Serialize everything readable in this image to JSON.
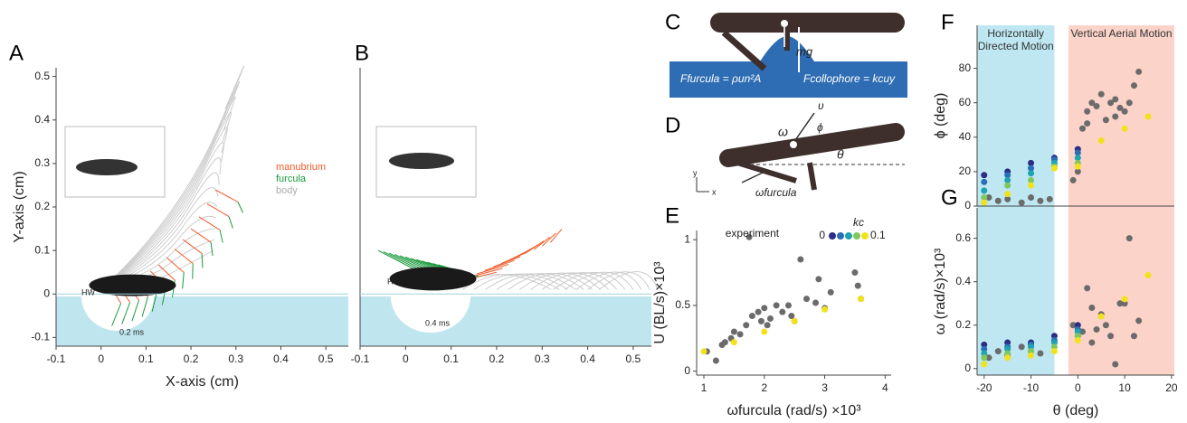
{
  "panel_labels": [
    "A",
    "B",
    "C",
    "D",
    "E",
    "F",
    "G"
  ],
  "diagram_c": {
    "weight": "mg",
    "furcula_force": "Ffurcula = ρun²A",
    "collophore_force": "Fcollophore = kcuy"
  },
  "diagram_d": {
    "omega": "ω",
    "velocity": "υ",
    "phi": "ϕ",
    "theta": "θ",
    "omega_furcula": "ωfurcula",
    "y_axis": "y",
    "x_axis": "x"
  },
  "chart_data": [
    {
      "type": "trajectory",
      "xlabel": "X-axis (cm)",
      "ylabel": "Y-axis (cm)",
      "xlim": [
        -0.1,
        0.55
      ],
      "ylim": [
        -0.12,
        0.52
      ],
      "xticks": [
        -0.1,
        0,
        0.1,
        0.2,
        0.3,
        0.4,
        0.5
      ],
      "yticks": [
        -0.1,
        0,
        0.1,
        0.2,
        0.3,
        0.4,
        0.5
      ],
      "legend": [
        {
          "name": "manubrium",
          "color": "#f05a28"
        },
        {
          "name": "furcula",
          "color": "#1a9a3a"
        },
        {
          "name": "body",
          "color": "#aaaaaa"
        }
      ],
      "annotations": [
        "HW",
        "0.2 ms"
      ]
    },
    {
      "type": "trajectory",
      "xlim": [
        -0.1,
        0.54
      ],
      "ylim": [
        -0.12,
        0.52
      ],
      "xticks": [
        -0.1,
        0,
        0.1,
        0.2,
        0.3,
        0.4,
        0.5
      ],
      "annotations": [
        "HW",
        "0.4 ms"
      ]
    },
    {
      "type": "scatter",
      "xlabel": "ωfurcula (rad/s) ×10³",
      "ylabel": "U (BL/s)×10³",
      "xlim": [
        0.88,
        4.1
      ],
      "ylim": [
        -0.03,
        1.07
      ],
      "xticks": [
        1,
        2,
        3,
        4
      ],
      "yticks": [
        0,
        0.5,
        1
      ],
      "kc_legend": {
        "title": "kc",
        "min": 0,
        "max": 0.1,
        "colors": [
          "#2c2d84",
          "#2a6eb5",
          "#1fa3b0",
          "#7ec860",
          "#f2e21b"
        ]
      },
      "series": [
        {
          "name": "experiment",
          "color": "#6b6b6b",
          "x": [
            1.05,
            1.2,
            1.3,
            1.35,
            1.45,
            1.5,
            1.6,
            1.7,
            1.75,
            1.8,
            1.9,
            1.95,
            2,
            2.05,
            2.1,
            2.2,
            2.3,
            2.4,
            2.45,
            2.5,
            2.6,
            2.7,
            2.85,
            2.9,
            3,
            3.1,
            3.5,
            3.55,
            3.6
          ],
          "values": [
            0.15,
            0.08,
            0.2,
            0.22,
            0.25,
            0.3,
            0.28,
            0.35,
            1.02,
            0.42,
            0.45,
            0.38,
            0.48,
            0.35,
            0.4,
            0.5,
            0.45,
            0.5,
            0.42,
            0.38,
            0.85,
            0.55,
            0.52,
            0.7,
            0.48,
            0.6,
            0.75,
            0.65,
            0.55
          ]
        },
        {
          "color": "#f2e21b",
          "x": [
            1,
            1.5,
            2,
            2.5,
            3,
            3.6
          ],
          "values": [
            0.15,
            0.22,
            0.3,
            0.38,
            0.47,
            0.55
          ]
        }
      ]
    },
    {
      "type": "scatter",
      "ylabel": "ϕ (deg)",
      "xlim": [
        -21.5,
        20.6
      ],
      "ylim": [
        0,
        105
      ],
      "yticks": [
        0,
        20,
        40,
        60,
        80
      ],
      "regions": [
        {
          "x": [
            -21.5,
            -5
          ],
          "color": "#bfe7f2",
          "label": "Horizontally Directed Motion"
        },
        {
          "x": [
            -2,
            20.6
          ],
          "color": "#fbd3c9",
          "label": "Vertical Aerial Motion"
        }
      ],
      "series": [
        {
          "color": "#6b6b6b",
          "x": [
            -19,
            -17,
            -15,
            -12,
            -10,
            -8,
            -6,
            -1,
            0,
            1,
            2,
            3,
            4,
            5,
            6,
            7,
            8,
            9,
            10,
            11,
            12,
            13,
            2,
            8
          ],
          "values": [
            5,
            3,
            4,
            2,
            5,
            3,
            4,
            15,
            20,
            45,
            55,
            60,
            58,
            65,
            50,
            60,
            62,
            57,
            55,
            60,
            70,
            78,
            48,
            52
          ]
        },
        {
          "color": "#2c2d84",
          "x": [
            -20,
            -15,
            -10,
            -5,
            0
          ],
          "values": [
            18,
            20,
            25,
            28,
            33
          ]
        },
        {
          "color": "#2a6eb5",
          "x": [
            -20,
            -15,
            -10,
            -5,
            0
          ],
          "values": [
            14,
            18,
            22,
            27,
            31
          ]
        },
        {
          "color": "#1fa3b0",
          "x": [
            -20,
            -15,
            -10,
            -5,
            0
          ],
          "values": [
            9,
            15,
            19,
            25,
            28
          ]
        },
        {
          "color": "#7ec860",
          "x": [
            -20,
            -15,
            -10,
            -5,
            0
          ],
          "values": [
            5,
            12,
            15,
            23,
            25
          ]
        },
        {
          "color": "#f2e21b",
          "x": [
            -20,
            -15,
            -10,
            -5,
            0,
            5,
            10,
            15
          ],
          "values": [
            2,
            7,
            12,
            22,
            23,
            38,
            45,
            52
          ]
        }
      ]
    },
    {
      "type": "scatter",
      "xlabel": "θ (deg)",
      "ylabel": "ω (rad/s)×10³",
      "xlim": [
        -21.5,
        20.6
      ],
      "ylim": [
        -0.03,
        0.74
      ],
      "xticks": [
        -20,
        -10,
        0,
        10,
        20
      ],
      "yticks": [
        0,
        0.2,
        0.4,
        0.6
      ],
      "series": [
        {
          "color": "#6b6b6b",
          "x": [
            -19,
            -17,
            -15,
            -12,
            -10,
            -8,
            -1,
            0,
            1,
            2,
            3,
            4,
            5,
            6,
            7,
            8,
            9,
            10,
            11,
            12,
            13,
            3
          ],
          "values": [
            0.05,
            0.08,
            0.06,
            0.1,
            0.08,
            0.07,
            0.2,
            0.15,
            0.17,
            0.37,
            0.28,
            0.18,
            0.25,
            0.2,
            0.15,
            0.02,
            0.3,
            0.3,
            0.6,
            0.15,
            0.22,
            0.12
          ]
        },
        {
          "color": "#2c2d84",
          "x": [
            -20,
            -15,
            -10,
            -5,
            0
          ],
          "values": [
            0.11,
            0.12,
            0.12,
            0.15,
            0.2
          ]
        },
        {
          "color": "#2a6eb5",
          "x": [
            -20,
            -15,
            -10,
            -5,
            0
          ],
          "values": [
            0.09,
            0.1,
            0.11,
            0.13,
            0.18
          ]
        },
        {
          "color": "#1fa3b0",
          "x": [
            -20,
            -15,
            -10,
            -5,
            0
          ],
          "values": [
            0.07,
            0.09,
            0.1,
            0.12,
            0.17
          ]
        },
        {
          "color": "#7ec860",
          "x": [
            -20,
            -15,
            -10,
            -5,
            0
          ],
          "values": [
            0.05,
            0.07,
            0.08,
            0.1,
            0.15
          ]
        },
        {
          "color": "#f2e21b",
          "x": [
            -20,
            -15,
            -10,
            -5,
            0,
            5,
            10,
            15
          ],
          "values": [
            0.02,
            0.05,
            0.06,
            0.08,
            0.13,
            0.24,
            0.32,
            0.43
          ]
        }
      ]
    }
  ]
}
